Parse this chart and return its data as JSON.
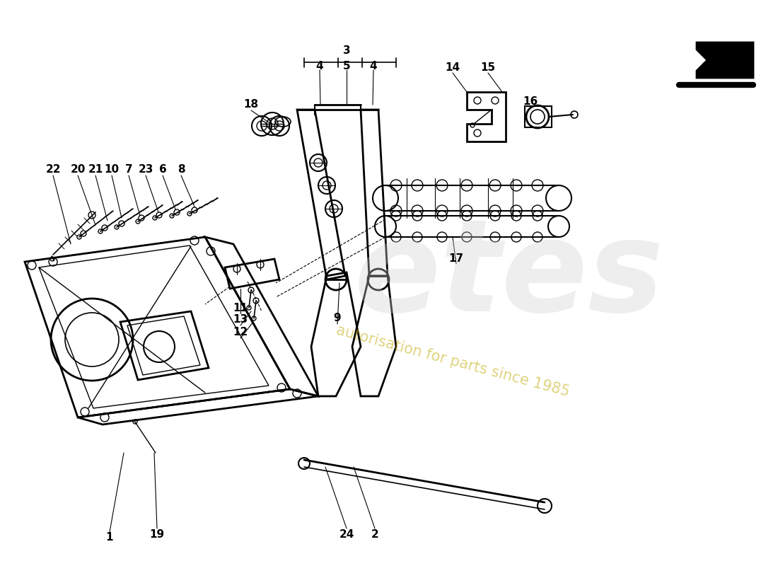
{
  "bg_color": "#ffffff",
  "line_color": "#000000",
  "wm_text": "etes",
  "wm_sub": "autorisation for parts since 1985",
  "wm_color": "#cccccc",
  "wm_sub_color": "#c8b800",
  "arrow_color": "#000000",
  "label_fs": 11
}
